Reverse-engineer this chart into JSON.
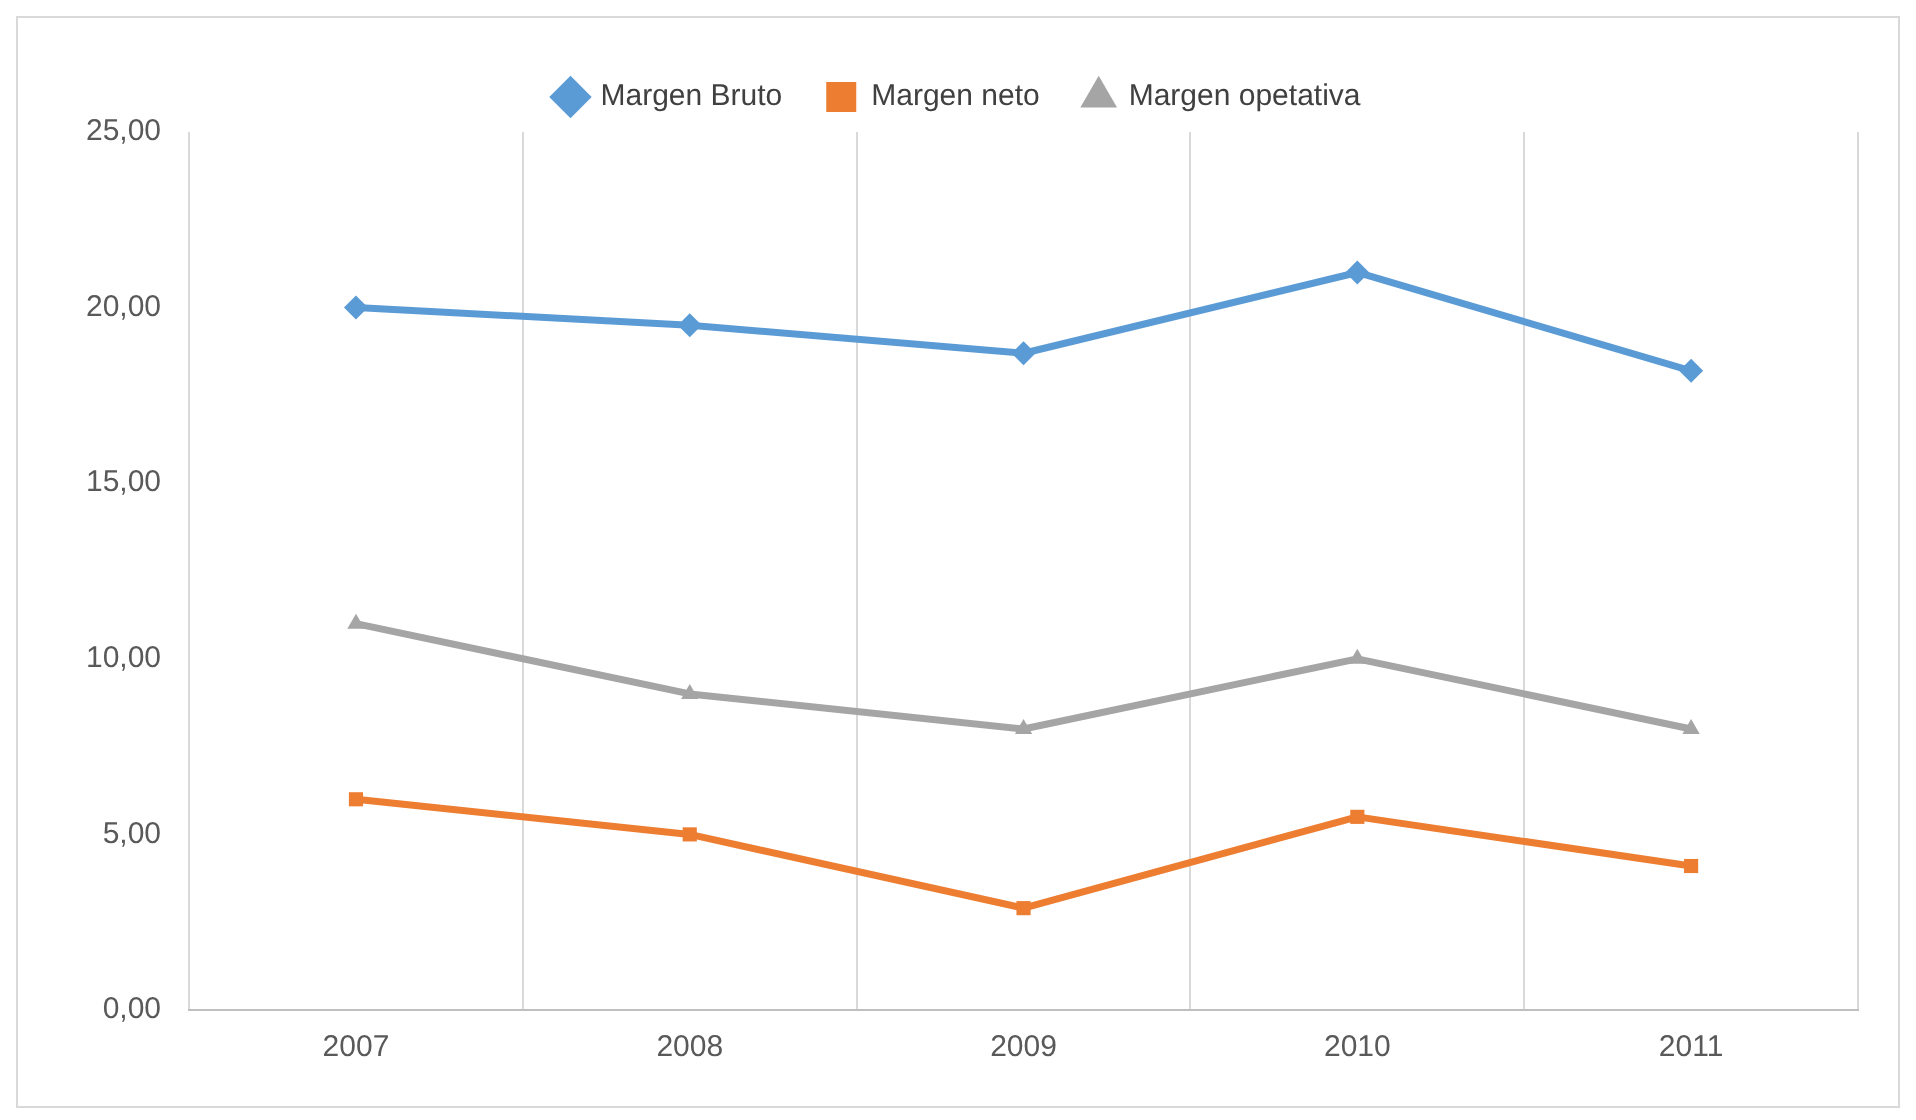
{
  "chart_data": {
    "type": "line",
    "categories": [
      "2007",
      "2008",
      "2009",
      "2010",
      "2011"
    ],
    "series": [
      {
        "name": "Margen Bruto",
        "color": "#5b9bd5",
        "marker": "diamond",
        "values": [
          20.0,
          19.5,
          18.7,
          21.0,
          18.2
        ]
      },
      {
        "name": "Margen neto",
        "color": "#ed7d31",
        "marker": "square",
        "values": [
          6.0,
          5.0,
          2.9,
          5.5,
          4.1
        ]
      },
      {
        "name": "Margen opetativa",
        "color": "#a5a5a5",
        "marker": "triangle",
        "values": [
          11.0,
          9.0,
          8.0,
          10.0,
          8.0
        ]
      }
    ],
    "ylim": [
      0,
      25
    ],
    "yticks": [
      {
        "value": 0,
        "label": "0,00"
      },
      {
        "value": 5,
        "label": "5,00"
      },
      {
        "value": 10,
        "label": "10,00"
      },
      {
        "value": 15,
        "label": "15,00"
      },
      {
        "value": 20,
        "label": "20,00"
      },
      {
        "value": 25,
        "label": "25,00"
      }
    ],
    "grid": "x",
    "legend": "top",
    "line_style": "solid"
  }
}
